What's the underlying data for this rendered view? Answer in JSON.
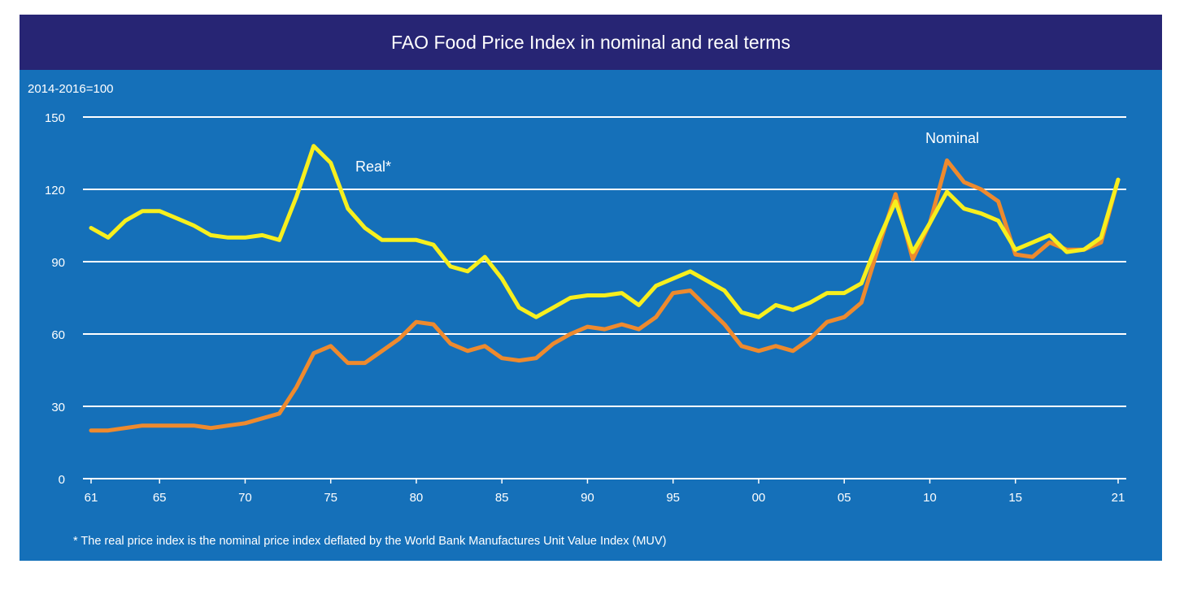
{
  "colors": {
    "background": "#1570b9",
    "title_bar": "#272574",
    "gridline": "#ffffff",
    "real_line": "#f7ef1e",
    "nominal_line": "#ee8a2e",
    "text": "#ffffff"
  },
  "chart_data": {
    "type": "line",
    "title": "FAO Food Price Index in nominal and real terms",
    "ylabel": "2014-2016=100",
    "xlabel": "",
    "ylim": [
      0,
      150
    ],
    "yticks": [
      0,
      30,
      60,
      90,
      120,
      150
    ],
    "xlim": [
      1961,
      2021
    ],
    "xticks": [
      {
        "value": 1961,
        "label": "61"
      },
      {
        "value": 1965,
        "label": "65"
      },
      {
        "value": 1970,
        "label": "70"
      },
      {
        "value": 1975,
        "label": "75"
      },
      {
        "value": 1980,
        "label": "80"
      },
      {
        "value": 1985,
        "label": "85"
      },
      {
        "value": 1990,
        "label": "90"
      },
      {
        "value": 1995,
        "label": "95"
      },
      {
        "value": 2000,
        "label": "00"
      },
      {
        "value": 2005,
        "label": "05"
      },
      {
        "value": 2010,
        "label": "10"
      },
      {
        "value": 2015,
        "label": "15"
      },
      {
        "value": 2021,
        "label": "21"
      }
    ],
    "grid": true,
    "x": [
      1961,
      1962,
      1963,
      1964,
      1965,
      1966,
      1967,
      1968,
      1969,
      1970,
      1971,
      1972,
      1973,
      1974,
      1975,
      1976,
      1977,
      1978,
      1979,
      1980,
      1981,
      1982,
      1983,
      1984,
      1985,
      1986,
      1987,
      1988,
      1989,
      1990,
      1991,
      1992,
      1993,
      1994,
      1995,
      1996,
      1997,
      1998,
      1999,
      2000,
      2001,
      2002,
      2003,
      2004,
      2005,
      2006,
      2007,
      2008,
      2009,
      2010,
      2011,
      2012,
      2013,
      2014,
      2015,
      2016,
      2017,
      2018,
      2019,
      2020,
      2021
    ],
    "series": [
      {
        "name": "Real*",
        "color": "#f7ef1e",
        "values": [
          104,
          100,
          107,
          111,
          111,
          108,
          105,
          101,
          100,
          100,
          101,
          99,
          117,
          138,
          131,
          112,
          104,
          99,
          99,
          99,
          97,
          88,
          86,
          92,
          83,
          71,
          67,
          71,
          75,
          76,
          76,
          77,
          72,
          80,
          83,
          86,
          82,
          78,
          69,
          67,
          72,
          70,
          73,
          77,
          77,
          81,
          99,
          115,
          94,
          106,
          119,
          112,
          110,
          107,
          95,
          98,
          101,
          94,
          95,
          100,
          124
        ]
      },
      {
        "name": "Nominal",
        "color": "#ee8a2e",
        "values": [
          20,
          20,
          21,
          22,
          22,
          22,
          22,
          21,
          22,
          23,
          25,
          27,
          38,
          52,
          55,
          48,
          48,
          53,
          58,
          65,
          64,
          56,
          53,
          55,
          50,
          49,
          50,
          56,
          60,
          63,
          62,
          64,
          62,
          67,
          77,
          78,
          71,
          64,
          55,
          53,
          55,
          53,
          58,
          65,
          67,
          73,
          96,
          118,
          91,
          106,
          132,
          123,
          120,
          115,
          93,
          92,
          98,
          95,
          95,
          98,
          124
        ]
      }
    ],
    "annotations": [
      "Real*",
      "Nominal"
    ],
    "footnote": "* The real price index is the nominal price index deflated by the World Bank Manufactures Unit Value Index (MUV)"
  }
}
